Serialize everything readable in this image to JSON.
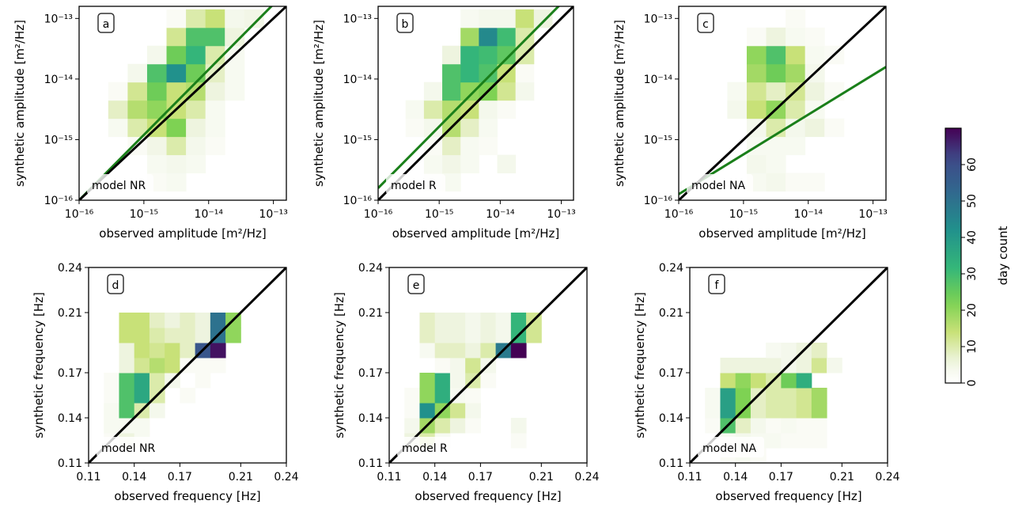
{
  "figure": {
    "amplitude_xlabel": "observed amplitude [m²/Hz]",
    "amplitude_ylabel": "synthetic amplitude [m²/Hz]",
    "frequency_xlabel": "observed frequency [Hz]",
    "frequency_ylabel": "synthetic frequency [Hz]",
    "amp_tick_labels": [
      "10⁻¹⁶",
      "10⁻¹⁵",
      "10⁻¹⁴",
      "10⁻¹³"
    ],
    "freq_tick_labels": [
      "0.11",
      "0.14",
      "0.17",
      "0.21",
      "0.24"
    ],
    "colorbar": {
      "label": "day count",
      "ticks": [
        "0",
        "10",
        "20",
        "30",
        "40",
        "50",
        "60"
      ],
      "range": [
        0,
        70
      ],
      "colormap": "viridis_r"
    },
    "colors": {
      "fit_line": "#1a7f1a",
      "identity_line": "#000000"
    }
  },
  "chart_data": [
    {
      "type": "heatmap",
      "panel": "a",
      "model": "model NR",
      "xlabel": "observed amplitude [m²/Hz]",
      "ylabel": "synthetic amplitude [m²/Hz]",
      "scale": "log",
      "xlim_log10": [
        -16,
        -12.8
      ],
      "ylim_log10": [
        -16,
        -12.8
      ],
      "bins_log10": [
        -15.7,
        -15.4,
        -15.1,
        -14.8,
        -14.5,
        -14.2,
        -13.9,
        -13.6,
        -13.3,
        -13.0
      ],
      "counts": [
        [
          0,
          0,
          0,
          2,
          3,
          0,
          0,
          0,
          0,
          0
        ],
        [
          0,
          0,
          0,
          3,
          4,
          3,
          0,
          0,
          0,
          0
        ],
        [
          0,
          0,
          2,
          5,
          10,
          4,
          2,
          0,
          0,
          0
        ],
        [
          0,
          3,
          10,
          14,
          22,
          6,
          3,
          0,
          0,
          0
        ],
        [
          0,
          8,
          16,
          20,
          14,
          10,
          3,
          0,
          0,
          0
        ],
        [
          0,
          2,
          12,
          24,
          14,
          16,
          6,
          3,
          0,
          0
        ],
        [
          0,
          0,
          4,
          28,
          42,
          24,
          8,
          3,
          0,
          0
        ],
        [
          0,
          0,
          0,
          4,
          24,
          32,
          10,
          3,
          0,
          0
        ],
        [
          0,
          0,
          0,
          0,
          12,
          28,
          28,
          6,
          0,
          0
        ],
        [
          0,
          0,
          0,
          0,
          2,
          10,
          14,
          4,
          5,
          0
        ]
      ],
      "fit_line_log10": {
        "x": [
          -16,
          -12.8
        ],
        "y": [
          -16,
          -12.55
        ]
      },
      "identity_line_log10": {
        "x": [
          -16,
          -12.8
        ],
        "y": [
          -16,
          -12.8
        ]
      }
    },
    {
      "type": "heatmap",
      "panel": "b",
      "model": "model R",
      "xlabel": "observed amplitude [m²/Hz]",
      "ylabel": "synthetic amplitude [m²/Hz]",
      "scale": "log",
      "xlim_log10": [
        -16,
        -12.8
      ],
      "ylim_log10": [
        -16,
        -12.8
      ],
      "bins_log10": [
        -15.7,
        -15.4,
        -15.1,
        -14.8,
        -14.5,
        -14.2,
        -13.9,
        -13.6,
        -13.3,
        -13.0
      ],
      "counts": [
        [
          0,
          0,
          2,
          3,
          0,
          0,
          0,
          0,
          0,
          0
        ],
        [
          0,
          0,
          3,
          5,
          3,
          0,
          4,
          0,
          0,
          0
        ],
        [
          0,
          0,
          2,
          8,
          3,
          2,
          0,
          0,
          0,
          0
        ],
        [
          0,
          2,
          4,
          16,
          8,
          3,
          0,
          0,
          0,
          0
        ],
        [
          0,
          3,
          10,
          16,
          14,
          4,
          2,
          0,
          0,
          0
        ],
        [
          0,
          0,
          4,
          28,
          20,
          22,
          12,
          4,
          0,
          0
        ],
        [
          0,
          0,
          0,
          28,
          32,
          28,
          14,
          2,
          0,
          0
        ],
        [
          0,
          0,
          0,
          6,
          32,
          30,
          26,
          10,
          0,
          0
        ],
        [
          0,
          0,
          0,
          0,
          18,
          44,
          30,
          10,
          0,
          0
        ],
        [
          0,
          0,
          0,
          0,
          3,
          4,
          4,
          14,
          6,
          0
        ]
      ],
      "fit_line_log10": {
        "x": [
          -16,
          -12.8
        ],
        "y": [
          -15.8,
          -12.55
        ]
      },
      "identity_line_log10": {
        "x": [
          -16,
          -12.8
        ],
        "y": [
          -16,
          -12.8
        ]
      }
    },
    {
      "type": "heatmap",
      "panel": "c",
      "model": "model NA",
      "xlabel": "observed amplitude [m²/Hz]",
      "ylabel": "synthetic amplitude [m²/Hz]",
      "scale": "log",
      "xlim_log10": [
        -16,
        -12.8
      ],
      "ylim_log10": [
        -16,
        -12.8
      ],
      "bins_log10": [
        -15.7,
        -15.4,
        -15.1,
        -14.8,
        -14.5,
        -14.2,
        -13.9,
        -13.6,
        -13.3,
        -13.0
      ],
      "counts": [
        [
          0,
          0,
          0,
          3,
          4,
          2,
          2,
          0,
          0,
          0
        ],
        [
          0,
          0,
          0,
          4,
          3,
          0,
          0,
          0,
          0,
          0
        ],
        [
          0,
          0,
          0,
          3,
          3,
          3,
          0,
          0,
          0,
          0
        ],
        [
          0,
          0,
          0,
          4,
          10,
          4,
          6,
          2,
          0,
          0
        ],
        [
          0,
          0,
          4,
          14,
          20,
          10,
          3,
          0,
          0,
          0
        ],
        [
          0,
          0,
          3,
          12,
          8,
          12,
          6,
          2,
          0,
          0
        ],
        [
          0,
          0,
          0,
          18,
          24,
          18,
          4,
          0,
          0,
          0
        ],
        [
          0,
          0,
          0,
          20,
          28,
          14,
          3,
          2,
          0,
          0
        ],
        [
          0,
          0,
          0,
          2,
          6,
          3,
          2,
          0,
          0,
          0
        ],
        [
          0,
          0,
          0,
          0,
          0,
          2,
          0,
          0,
          0,
          0
        ]
      ],
      "fit_line_log10": {
        "x": [
          -16,
          -12.8
        ],
        "y": [
          -15.9,
          -13.8
        ]
      },
      "identity_line_log10": {
        "x": [
          -16,
          -12.8
        ],
        "y": [
          -16,
          -12.8
        ]
      }
    },
    {
      "type": "heatmap",
      "panel": "d",
      "model": "model NR",
      "xlabel": "observed frequency [Hz]",
      "ylabel": "synthetic frequency [Hz]",
      "xlim": [
        0.11,
        0.24
      ],
      "ylim": [
        0.11,
        0.24
      ],
      "bins": [
        0.115,
        0.125,
        0.135,
        0.145,
        0.155,
        0.165,
        0.175,
        0.185,
        0.195,
        0.205,
        0.215,
        0.225,
        0.235
      ],
      "counts": [
        [
          0,
          0,
          0,
          0,
          0,
          0,
          0,
          0,
          0,
          0,
          0,
          0,
          0
        ],
        [
          0,
          2,
          6,
          3,
          0,
          0,
          0,
          0,
          0,
          0,
          0,
          0,
          0
        ],
        [
          0,
          3,
          3,
          3,
          0,
          0,
          0,
          0,
          0,
          0,
          0,
          0,
          0
        ],
        [
          0,
          3,
          28,
          10,
          4,
          0,
          0,
          0,
          0,
          0,
          0,
          0,
          0
        ],
        [
          0,
          2,
          28,
          36,
          10,
          0,
          2,
          0,
          0,
          0,
          0,
          0,
          0
        ],
        [
          0,
          2,
          28,
          36,
          10,
          4,
          0,
          2,
          0,
          0,
          0,
          0,
          0
        ],
        [
          0,
          0,
          6,
          12,
          16,
          14,
          2,
          2,
          2,
          0,
          0,
          0,
          0
        ],
        [
          0,
          0,
          6,
          14,
          12,
          14,
          8,
          58,
          68,
          0,
          0,
          0,
          0
        ],
        [
          0,
          0,
          14,
          14,
          10,
          8,
          8,
          6,
          50,
          20,
          0,
          0,
          0
        ],
        [
          0,
          0,
          14,
          14,
          8,
          6,
          8,
          6,
          50,
          20,
          0,
          0,
          0
        ],
        [
          0,
          0,
          0,
          0,
          0,
          0,
          0,
          0,
          0,
          0,
          0,
          0,
          0
        ],
        [
          0,
          0,
          0,
          0,
          0,
          0,
          0,
          0,
          0,
          0,
          0,
          0,
          0
        ],
        [
          0,
          0,
          0,
          0,
          0,
          0,
          0,
          0,
          0,
          0,
          0,
          0,
          0
        ]
      ]
    },
    {
      "type": "heatmap",
      "panel": "e",
      "model": "model R",
      "xlabel": "observed frequency [Hz]",
      "ylabel": "synthetic frequency [Hz]",
      "xlim": [
        0.11,
        0.24
      ],
      "ylim": [
        0.11,
        0.24
      ],
      "bins": [
        0.115,
        0.125,
        0.135,
        0.145,
        0.155,
        0.165,
        0.175,
        0.185,
        0.195,
        0.205,
        0.215,
        0.225,
        0.235
      ],
      "counts": [
        [
          0,
          0,
          0,
          0,
          0,
          0,
          0,
          0,
          0,
          0,
          0,
          0,
          0
        ],
        [
          0,
          6,
          10,
          3,
          0,
          0,
          0,
          0,
          2,
          0,
          0,
          0,
          0
        ],
        [
          0,
          4,
          18,
          10,
          6,
          2,
          0,
          0,
          4,
          0,
          0,
          0,
          0
        ],
        [
          0,
          2,
          42,
          20,
          12,
          4,
          0,
          0,
          0,
          0,
          0,
          0,
          0
        ],
        [
          0,
          2,
          20,
          34,
          3,
          2,
          0,
          0,
          0,
          0,
          0,
          0,
          0
        ],
        [
          0,
          0,
          20,
          34,
          4,
          10,
          2,
          0,
          0,
          0,
          0,
          0,
          0
        ],
        [
          0,
          0,
          0,
          2,
          4,
          12,
          4,
          0,
          0,
          0,
          0,
          0,
          0
        ],
        [
          0,
          0,
          3,
          8,
          8,
          6,
          10,
          48,
          70,
          0,
          0,
          0,
          0
        ],
        [
          0,
          0,
          8,
          6,
          6,
          4,
          6,
          4,
          32,
          12,
          0,
          0,
          0
        ],
        [
          0,
          0,
          8,
          6,
          6,
          4,
          6,
          4,
          32,
          12,
          0,
          0,
          0
        ],
        [
          0,
          0,
          0,
          0,
          0,
          0,
          0,
          0,
          0,
          0,
          0,
          0,
          0
        ],
        [
          0,
          0,
          0,
          0,
          0,
          0,
          0,
          0,
          0,
          0,
          0,
          0,
          0
        ],
        [
          0,
          0,
          0,
          0,
          0,
          0,
          0,
          0,
          0,
          0,
          0,
          0,
          0
        ]
      ]
    },
    {
      "type": "heatmap",
      "panel": "f",
      "model": "model NA",
      "xlabel": "observed frequency [Hz]",
      "ylabel": "synthetic frequency [Hz]",
      "xlim": [
        0.11,
        0.24
      ],
      "ylim": [
        0.11,
        0.24
      ],
      "bins": [
        0.115,
        0.125,
        0.135,
        0.145,
        0.155,
        0.165,
        0.175,
        0.185,
        0.195,
        0.205,
        0.215,
        0.225,
        0.235
      ],
      "counts": [
        [
          0,
          0,
          2,
          3,
          2,
          0,
          0,
          0,
          0,
          0,
          0,
          0,
          0
        ],
        [
          0,
          0,
          3,
          4,
          3,
          3,
          2,
          2,
          2,
          0,
          0,
          0,
          0
        ],
        [
          0,
          2,
          28,
          8,
          4,
          2,
          3,
          2,
          2,
          0,
          0,
          0,
          0
        ],
        [
          0,
          3,
          38,
          22,
          8,
          10,
          10,
          12,
          18,
          0,
          0,
          0,
          0
        ],
        [
          0,
          3,
          38,
          22,
          8,
          10,
          10,
          12,
          18,
          0,
          0,
          0,
          0
        ],
        [
          0,
          0,
          14,
          20,
          14,
          10,
          24,
          34,
          0,
          0,
          0,
          0,
          0
        ],
        [
          0,
          0,
          6,
          6,
          6,
          6,
          4,
          6,
          12,
          4,
          0,
          0,
          0
        ],
        [
          0,
          0,
          0,
          0,
          0,
          3,
          4,
          6,
          8,
          0,
          0,
          0,
          0
        ],
        [
          0,
          0,
          0,
          0,
          0,
          0,
          0,
          0,
          0,
          0,
          0,
          0,
          0
        ],
        [
          0,
          0,
          0,
          0,
          0,
          0,
          0,
          0,
          0,
          0,
          0,
          0,
          0
        ],
        [
          0,
          0,
          0,
          0,
          0,
          0,
          0,
          0,
          0,
          0,
          0,
          0,
          0
        ],
        [
          0,
          0,
          0,
          0,
          0,
          0,
          0,
          0,
          0,
          0,
          0,
          0,
          0
        ],
        [
          0,
          0,
          0,
          0,
          0,
          0,
          0,
          0,
          0,
          0,
          0,
          0,
          0
        ]
      ]
    }
  ]
}
